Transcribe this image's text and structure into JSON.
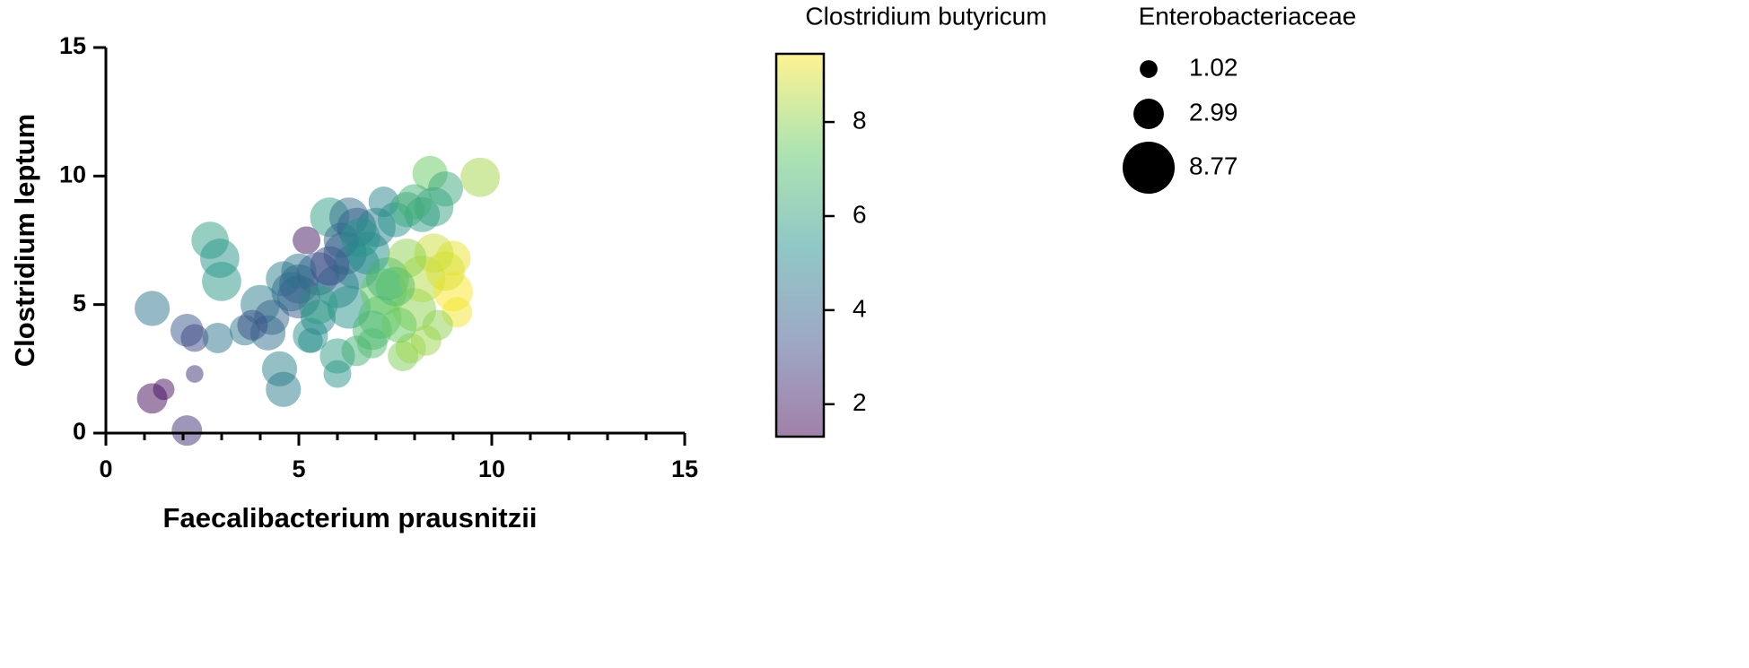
{
  "chart_data": {
    "type": "bubble",
    "xlabel": "Faecalibacterium prausnitzii",
    "ylabel": "Clostridium leptum",
    "xlim": [
      0,
      15
    ],
    "ylim": [
      0,
      15
    ],
    "xticks": [
      0,
      5,
      10,
      15
    ],
    "yticks": [
      0,
      5,
      10,
      15
    ],
    "xminorticks": [
      1,
      2,
      3,
      4,
      6,
      7,
      8,
      9,
      11,
      12,
      13,
      14
    ],
    "colormap": [
      "#440154",
      "#3b528b",
      "#21918c",
      "#5ec962",
      "#fde725"
    ],
    "opacity": 0.5,
    "colorbar": {
      "title": "Clostridium butyricum",
      "lim": [
        1.31,
        9.45
      ],
      "ticks": [
        2,
        4,
        6,
        8
      ]
    },
    "size_legend": {
      "title": "Enterobacteriaceae",
      "values": [
        1.02,
        2.99,
        8.77
      ]
    },
    "x": [
      1.2,
      2.1,
      2.3,
      2.9,
      1.2,
      1.5,
      2.3,
      2.1,
      2.7,
      2.95,
      3.0,
      3.6,
      4.0,
      4.2,
      4.5,
      4.6,
      4.6,
      5.0,
      5.0,
      5.2,
      5.3,
      5.3,
      5.5,
      5.8,
      6.0,
      6.0,
      6.3,
      6.5,
      6.2,
      6.0,
      6.5,
      6.8,
      6.3,
      6.5,
      6.9,
      7.1,
      7.2,
      7.0,
      7.5,
      7.3,
      7.7,
      7.9,
      8.0,
      8.2,
      8.4,
      8.5,
      8.8,
      8.2,
      9.7,
      9.0,
      9.0,
      9.1,
      8.8,
      8.5,
      7.8,
      7.5,
      8.6,
      8.3,
      4.3,
      5.5,
      5.0,
      5.8,
      6.1,
      6.6,
      7.2,
      7.8,
      8.0,
      5.5,
      4.8,
      3.8,
      6.9,
      7.6
    ],
    "y": [
      4.85,
      4.0,
      3.7,
      3.7,
      1.35,
      1.7,
      2.3,
      0.1,
      7.5,
      6.8,
      5.9,
      4.0,
      5.0,
      3.9,
      2.5,
      1.7,
      6.0,
      5.8,
      5.3,
      7.5,
      3.6,
      3.8,
      6.2,
      8.4,
      2.3,
      3.0,
      8.4,
      8.0,
      7.0,
      5.7,
      6.5,
      7.0,
      4.9,
      3.2,
      3.5,
      4.5,
      5.5,
      8.0,
      8.3,
      6.0,
      3.0,
      3.3,
      4.8,
      6.0,
      10.1,
      8.8,
      9.5,
      8.5,
      9.95,
      6.8,
      5.5,
      4.7,
      6.3,
      7.0,
      6.8,
      5.7,
      4.2,
      3.6,
      4.5,
      4.5,
      6.3,
      6.5,
      7.5,
      7.6,
      9.0,
      8.7,
      9.0,
      5.0,
      5.5,
      4.2,
      4.0,
      4.2
    ],
    "size": [
      4,
      3.5,
      2.5,
      3,
      3,
      1.5,
      1,
      3,
      4.5,
      5,
      5,
      3,
      5,
      4,
      4,
      4,
      4,
      5,
      6,
      2.5,
      2,
      4,
      6,
      5,
      2.5,
      4,
      5,
      5,
      6,
      6,
      7,
      6,
      6,
      3,
      3,
      6,
      7,
      5,
      4,
      6,
      3,
      3,
      6,
      7,
      4,
      5,
      4,
      4,
      5,
      4,
      5,
      3,
      5,
      5,
      5,
      5,
      3,
      3,
      4,
      4,
      4,
      5,
      4,
      5,
      3,
      4,
      4,
      5,
      5,
      3,
      5,
      4
    ],
    "color": [
      4.5,
      3.5,
      3,
      4.5,
      1.5,
      1.6,
      2.5,
      2.5,
      5.8,
      5.5,
      5.6,
      4.6,
      4.7,
      4.3,
      4.8,
      4.7,
      4.8,
      3.8,
      3.5,
      1.8,
      4.8,
      5.5,
      3.4,
      5.8,
      5.5,
      5.8,
      4.2,
      3.8,
      3.5,
      4.5,
      5.0,
      5.3,
      5.5,
      6.5,
      7,
      7.0,
      7.5,
      4.8,
      5.5,
      6.5,
      7.8,
      8.2,
      8.0,
      8.5,
      7.5,
      6.0,
      6.2,
      5.8,
      8.3,
      9.2,
      9.4,
      9.3,
      9.0,
      8.8,
      8.0,
      7.0,
      8.0,
      8.2,
      4.0,
      5.0,
      4.5,
      3.2,
      4.0,
      5.5,
      5.0,
      6.2,
      6.5,
      5.8,
      4.2,
      3.2,
      6.8,
      7.5
    ]
  }
}
